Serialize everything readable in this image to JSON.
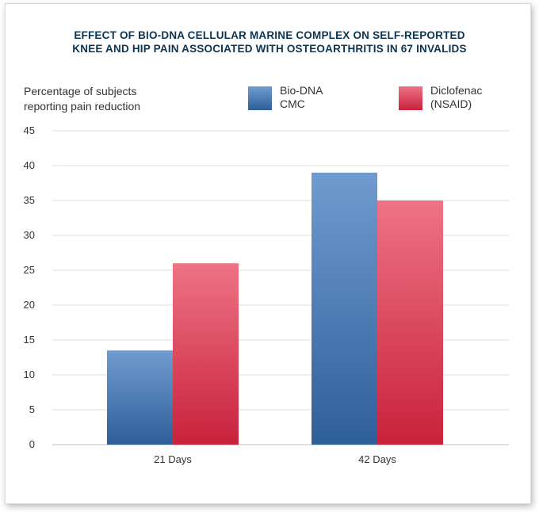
{
  "chart_data": {
    "type": "bar",
    "title_line1": "EFFECT OF BIO-DNA CELLULAR MARINE COMPLEX ON SELF-REPORTED",
    "title_line2": "KNEE AND HIP PAIN ASSOCIATED WITH OSTEOARTHRITIS IN 67 INVALIDS",
    "ylabel_line1": "Percentage of subjects",
    "ylabel_line2": "reporting pain reduction",
    "xlabel": "",
    "categories": [
      "21 Days",
      "42 Days"
    ],
    "series": [
      {
        "name_line1": "Bio-DNA",
        "name_line2": "CMC",
        "values": [
          13.5,
          39
        ],
        "color_top": "#6f9bd0",
        "color_bottom": "#2f5f99"
      },
      {
        "name_line1": "Diclofenac",
        "name_line2": "(NSAID)",
        "values": [
          26,
          35
        ],
        "color_top": "#ee7384",
        "color_bottom": "#c8223c"
      }
    ],
    "yticks": [
      "0",
      "5",
      "10",
      "15",
      "20",
      "25",
      "30",
      "35",
      "40",
      "45"
    ],
    "ylim": [
      0,
      45
    ],
    "grid": true,
    "legend_position": "top-right"
  }
}
